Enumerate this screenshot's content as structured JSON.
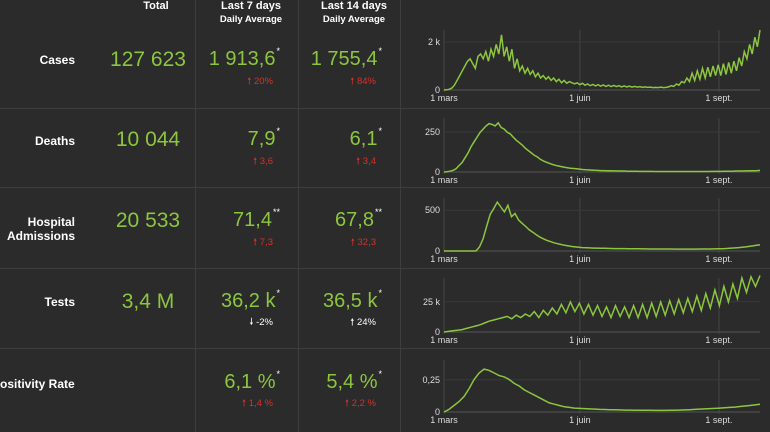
{
  "header": {
    "total": "Total",
    "last7": "Last 7 days",
    "last14": "Last 14 days",
    "daily_avg": "Daily Average"
  },
  "colors": {
    "accent": "#8cc63f",
    "increase": "#d9302b",
    "background": "#2b2b2b",
    "grid": "#3e3e3e"
  },
  "rows": [
    {
      "label": "Cases",
      "total": "127 623",
      "avg7": "1 913,6",
      "avg7_mark": "*",
      "chg7": "20%",
      "chg7_dir": "up",
      "avg14": "1 755,4",
      "avg14_mark": "*",
      "chg14": "84%",
      "chg14_dir": "up"
    },
    {
      "label": "Deaths",
      "total": "10 044",
      "avg7": "7,9",
      "avg7_mark": "*",
      "chg7": "3,6",
      "chg7_dir": "up",
      "avg14": "6,1",
      "avg14_mark": "*",
      "chg14": "3,4",
      "chg14_dir": "up"
    },
    {
      "label": "Hospital Admissions",
      "label_line1": "Hospital",
      "label_line2": "Admissions",
      "total": "20 533",
      "avg7": "71,4",
      "avg7_mark": "**",
      "chg7": "7,3",
      "chg7_dir": "up",
      "avg14": "67,8",
      "avg14_mark": "**",
      "chg14": "32,3",
      "chg14_dir": "up"
    },
    {
      "label": "Tests",
      "total": "3,4 M",
      "avg7": "36,2 k",
      "avg7_mark": "*",
      "chg7": "-2%",
      "chg7_dir": "down",
      "avg14": "36,5 k",
      "avg14_mark": "*",
      "chg14": "24%",
      "chg14_dir": "up-neutral"
    },
    {
      "label": "ositivity Rate",
      "total": "",
      "avg7": "6,1 %",
      "avg7_mark": "*",
      "chg7": "1,4 %",
      "chg7_dir": "up",
      "avg14": "5,4 %",
      "avg14_mark": "*",
      "chg14": "2,2 %",
      "chg14_dir": "up"
    }
  ],
  "chart_data": [
    {
      "type": "line",
      "title": "Cases",
      "x_ticks": [
        "1 mars",
        "1 juin",
        "1 sept."
      ],
      "y_ticks": [
        "0",
        "2 k"
      ],
      "ylim": [
        0,
        2500
      ],
      "x_range": [
        "2020-03-01",
        "2020-09-30"
      ],
      "values": [
        0,
        10,
        30,
        80,
        200,
        400,
        600,
        800,
        1000,
        1200,
        1300,
        1100,
        900,
        1400,
        1500,
        1300,
        1600,
        1200,
        1700,
        1400,
        1900,
        1500,
        2300,
        1400,
        1800,
        1200,
        1700,
        900,
        1300,
        800,
        1000,
        700,
        900,
        650,
        800,
        550,
        700,
        500,
        600,
        450,
        550,
        400,
        500,
        350,
        450,
        300,
        400,
        280,
        350,
        300,
        260,
        300,
        220,
        280,
        200,
        250,
        180,
        230,
        170,
        220,
        160,
        210,
        150,
        200,
        140,
        190,
        140,
        180,
        130,
        170,
        130,
        160,
        120,
        150,
        120,
        140,
        110,
        130,
        110,
        120,
        100,
        110,
        100,
        120,
        100,
        110,
        130,
        180,
        150,
        250,
        200,
        350,
        300,
        500,
        350,
        700,
        400,
        800,
        450,
        900,
        500,
        950,
        550,
        1000,
        600,
        1050,
        600,
        1100,
        650,
        1150,
        700,
        1200,
        800,
        1350,
        1000,
        1600,
        1300,
        1900,
        1500,
        2200,
        1800,
        2500
      ]
    },
    {
      "type": "line",
      "title": "Deaths",
      "x_ticks": [
        "1 mars",
        "1 juin",
        "1 sept."
      ],
      "y_ticks": [
        "0",
        "250"
      ],
      "ylim": [
        0,
        340
      ],
      "values": [
        0,
        2,
        5,
        10,
        20,
        40,
        60,
        90,
        120,
        160,
        190,
        220,
        250,
        270,
        290,
        305,
        300,
        290,
        310,
        280,
        270,
        250,
        240,
        220,
        200,
        185,
        170,
        150,
        135,
        120,
        105,
        95,
        80,
        70,
        62,
        55,
        48,
        42,
        38,
        34,
        30,
        27,
        24,
        22,
        20,
        18,
        16,
        14,
        13,
        12,
        11,
        10,
        9,
        9,
        8,
        8,
        7,
        7,
        6,
        6,
        6,
        5,
        5,
        5,
        5,
        4,
        4,
        4,
        4,
        4,
        3,
        3,
        3,
        3,
        3,
        3,
        3,
        3,
        3,
        3,
        3,
        3,
        3,
        3,
        3,
        3,
        3,
        3,
        3,
        4,
        4,
        4,
        4,
        5,
        5,
        5,
        5,
        6,
        6,
        6,
        7,
        7,
        8,
        8,
        9,
        10
      ]
    },
    {
      "type": "line",
      "title": "Hospital Admissions",
      "x_ticks": [
        "1 mars",
        "1 juin",
        "1 sept."
      ],
      "y_ticks": [
        "0",
        "500"
      ],
      "ylim": [
        0,
        650
      ],
      "values": [
        0,
        0,
        0,
        0,
        0,
        0,
        0,
        0,
        0,
        0,
        50,
        150,
        300,
        450,
        520,
        600,
        540,
        480,
        560,
        420,
        460,
        380,
        340,
        300,
        260,
        230,
        200,
        170,
        150,
        130,
        115,
        100,
        90,
        80,
        70,
        62,
        55,
        50,
        45,
        42,
        40,
        38,
        36,
        35,
        34,
        33,
        32,
        31,
        30,
        30,
        29,
        29,
        28,
        28,
        27,
        27,
        26,
        26,
        25,
        25,
        25,
        24,
        24,
        24,
        24,
        23,
        23,
        23,
        23,
        23,
        23,
        23,
        24,
        24,
        25,
        25,
        26,
        27,
        28,
        30,
        32,
        35,
        38,
        42,
        46,
        50,
        56,
        62,
        70,
        75
      ]
    },
    {
      "type": "line",
      "title": "Tests",
      "x_ticks": [
        "1 mars",
        "1 juin",
        "1 sept."
      ],
      "y_ticks": [
        "0",
        "25 k"
      ],
      "ylim": [
        0,
        45000
      ],
      "values": [
        0,
        500,
        1000,
        1500,
        2000,
        3000,
        4000,
        5000,
        6000,
        7500,
        9000,
        10000,
        11000,
        12000,
        13000,
        11000,
        14000,
        12000,
        15000,
        13000,
        17000,
        12000,
        18000,
        14000,
        20000,
        15000,
        23000,
        16000,
        25000,
        17000,
        24000,
        15000,
        23000,
        14000,
        22000,
        13000,
        21000,
        12000,
        22000,
        13000,
        21000,
        12000,
        22000,
        12000,
        23000,
        12000,
        24000,
        13000,
        25000,
        14000,
        26000,
        15000,
        27000,
        16000,
        28000,
        17000,
        30000,
        18000,
        32000,
        20000,
        35000,
        22000,
        38000,
        25000,
        40000,
        28000,
        45000,
        33000,
        46000,
        38000,
        47000
      ]
    },
    {
      "type": "line",
      "title": "Positivity Rate",
      "x_ticks": [
        "1 mars",
        "1 juin",
        "1 sept."
      ],
      "y_ticks": [
        "0",
        "0,25"
      ],
      "ylim": [
        0,
        0.4
      ],
      "values": [
        0,
        0.02,
        0.05,
        0.08,
        0.12,
        0.18,
        0.25,
        0.3,
        0.33,
        0.32,
        0.3,
        0.28,
        0.27,
        0.25,
        0.22,
        0.2,
        0.17,
        0.15,
        0.13,
        0.11,
        0.09,
        0.07,
        0.06,
        0.05,
        0.04,
        0.035,
        0.03,
        0.028,
        0.026,
        0.024,
        0.022,
        0.02,
        0.019,
        0.018,
        0.017,
        0.016,
        0.015,
        0.015,
        0.014,
        0.014,
        0.013,
        0.013,
        0.012,
        0.012,
        0.012,
        0.013,
        0.014,
        0.015,
        0.016,
        0.018,
        0.02,
        0.022,
        0.024,
        0.026,
        0.028,
        0.03,
        0.032,
        0.035,
        0.038,
        0.042,
        0.046,
        0.05,
        0.055,
        0.06
      ]
    }
  ]
}
